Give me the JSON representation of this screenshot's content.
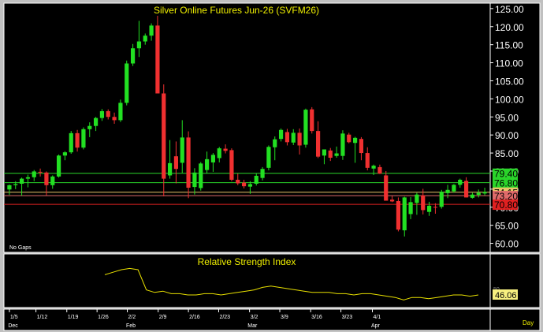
{
  "chart_data": [
    {
      "type": "candlestick",
      "title": "Silver Online Futures Jun-26 (SVFM26)",
      "note": "No Gaps",
      "ylim": [
        57.5,
        126.5
      ],
      "ticks": [
        "125.00",
        "120.00",
        "115.00",
        "110.00",
        "105.00",
        "100.00",
        "95.00",
        "90.00",
        "85.00",
        "80.00",
        "75.00",
        "70.00",
        "65.00",
        "60.00"
      ],
      "tick_values": [
        125,
        120,
        115,
        110,
        105,
        100,
        95,
        90,
        85,
        80,
        75,
        70,
        65,
        60
      ],
      "bars": [
        [
          1,
          74.9,
          76.3,
          73.4,
          76.1
        ],
        [
          2,
          76.1,
          77.2,
          75.0,
          76.4
        ],
        [
          3,
          76.5,
          78.2,
          73.2,
          77.9
        ],
        [
          4,
          77.9,
          79.0,
          75.5,
          78.3
        ],
        [
          5,
          78.3,
          80.3,
          77.2,
          79.9
        ],
        [
          6,
          79.8,
          80.7,
          78.5,
          79.6
        ],
        [
          7,
          79.6,
          79.9,
          73.3,
          76.1
        ],
        [
          8,
          76.1,
          78.8,
          75.1,
          78.5
        ],
        [
          9,
          78.5,
          84.6,
          78.2,
          84.3
        ],
        [
          10,
          84.3,
          85.5,
          83.0,
          85.2
        ],
        [
          11,
          85.2,
          91.1,
          84.8,
          90.5
        ],
        [
          12,
          90.5,
          91.4,
          85.4,
          86.5
        ],
        [
          13,
          86.5,
          92.1,
          86.0,
          91.6
        ],
        [
          14,
          91.6,
          93.5,
          89.4,
          92.5
        ],
        [
          15,
          92.5,
          95.0,
          91.1,
          94.7
        ],
        [
          16,
          94.7,
          97.2,
          93.9,
          96.6
        ],
        [
          17,
          96.6,
          97.1,
          94.3,
          95.0
        ],
        [
          18,
          95.0,
          96.2,
          93.1,
          94.1
        ],
        [
          19,
          94.1,
          99.8,
          93.6,
          98.9
        ],
        [
          20,
          98.9,
          110.6,
          98.2,
          109.8
        ],
        [
          21,
          109.8,
          115.2,
          109.1,
          114.0
        ],
        [
          22,
          114.0,
          121.6,
          111.6,
          115.9
        ],
        [
          23,
          115.9,
          118.1,
          115.0,
          117.5
        ],
        [
          24,
          117.5,
          120.9,
          116.1,
          120.3
        ],
        [
          25,
          120.3,
          123.0,
          114.0,
          101.5
        ],
        [
          26,
          101.5,
          104.0,
          73.0,
          77.9
        ],
        [
          27,
          78.8,
          88.6,
          77.9,
          82.2
        ],
        [
          28,
          84.1,
          88.2,
          76.6,
          80.6
        ],
        [
          29,
          82.3,
          94.1,
          79.5,
          89.3
        ],
        [
          30,
          89.3,
          91.0,
          72.5,
          75.4
        ],
        [
          31,
          75.6,
          80.8,
          73.5,
          79.6
        ],
        [
          32,
          75.3,
          82.5,
          74.6,
          82.1
        ],
        [
          33,
          80.3,
          85.4,
          79.3,
          83.3
        ],
        [
          34,
          82.4,
          85.0,
          79.8,
          84.5
        ],
        [
          35,
          83.6,
          86.7,
          82.4,
          86.3
        ],
        [
          36,
          86.2,
          87.4,
          84.9,
          85.6
        ],
        [
          37,
          85.8,
          86.3,
          77.2,
          77.6
        ],
        [
          38,
          77.6,
          79.3,
          76.1,
          76.6
        ],
        [
          39,
          76.8,
          77.6,
          75.2,
          75.8
        ],
        [
          40,
          75.7,
          77.2,
          73.7,
          76.4
        ],
        [
          41,
          76.5,
          79.3,
          76.0,
          78.7
        ],
        [
          42,
          78.1,
          81.1,
          77.4,
          80.6
        ],
        [
          43,
          80.9,
          87.1,
          80.2,
          86.7
        ],
        [
          44,
          86.6,
          89.6,
          83.0,
          88.8
        ],
        [
          45,
          88.9,
          91.8,
          88.2,
          91.4
        ],
        [
          46,
          90.8,
          91.7,
          87.1,
          88.0
        ],
        [
          47,
          87.9,
          91.6,
          87.2,
          90.6
        ],
        [
          48,
          90.6,
          91.8,
          84.6,
          87.1
        ],
        [
          49,
          87.3,
          97.3,
          86.5,
          97.0
        ],
        [
          50,
          97.1,
          97.7,
          90.4,
          91.1
        ],
        [
          51,
          91.1,
          93.8,
          83.6,
          84.0
        ],
        [
          52,
          84.3,
          86.0,
          81.9,
          86.0
        ],
        [
          53,
          85.7,
          86.4,
          82.8,
          83.7
        ],
        [
          54,
          84.2,
          86.8,
          83.7,
          84.9
        ],
        [
          55,
          84.2,
          91.3,
          83.1,
          90.4
        ],
        [
          56,
          90.1,
          90.6,
          87.7,
          88.0
        ],
        [
          57,
          87.8,
          89.5,
          82.3,
          89.2
        ],
        [
          58,
          88.9,
          89.4,
          83.0,
          85.0
        ],
        [
          59,
          85.0,
          86.6,
          80.2,
          80.9
        ],
        [
          60,
          80.7,
          81.8,
          78.9,
          81.5
        ],
        [
          61,
          81.1,
          81.8,
          79.2,
          79.3
        ],
        [
          62,
          78.8,
          80.0,
          71.8,
          71.8
        ],
        [
          63,
          72.1,
          73.1,
          71.4,
          71.6
        ],
        [
          64,
          71.7,
          72.7,
          63.3,
          63.8
        ],
        [
          65,
          63.6,
          72.9,
          61.9,
          72.7
        ],
        [
          66,
          68.1,
          72.8,
          66.7,
          71.4
        ],
        [
          67,
          71.2,
          74.0,
          67.9,
          73.5
        ],
        [
          68,
          73.3,
          75.1,
          68.0,
          69.2
        ],
        [
          69,
          68.7,
          71.5,
          67.6,
          70.4
        ],
        [
          70,
          70.1,
          71.1,
          68.2,
          70.0
        ],
        [
          71,
          70.1,
          74.8,
          69.6,
          74.3
        ],
        [
          72,
          73.9,
          76.2,
          72.5,
          74.8
        ],
        [
          73,
          74.4,
          76.4,
          74.0,
          76.2
        ],
        [
          74,
          76.2,
          77.9,
          75.4,
          77.6
        ],
        [
          75,
          77.3,
          78.3,
          72.7,
          72.7
        ],
        [
          76,
          72.6,
          74.0,
          72.4,
          73.5
        ],
        [
          77,
          73.4,
          74.9,
          72.7,
          74.0
        ],
        [
          78,
          73.8,
          75.4,
          73.3,
          74.2
        ]
      ],
      "hlines": [
        {
          "value": 79.4,
          "label": "79.40",
          "color": "#2ad52a"
        },
        {
          "value": 76.8,
          "label": "76.80",
          "color": "#2ad52a"
        },
        {
          "value": 74.15,
          "label": "74.15",
          "color": "#e8c468"
        },
        {
          "value": 73.2,
          "label": "73.20",
          "color": "#e06a6a"
        },
        {
          "value": 70.8,
          "label": "70.80",
          "color": "#e02020"
        }
      ],
      "xlabels": [
        "1/5",
        "1/12",
        "1/19",
        "1/26",
        "2/2",
        "2/9",
        "2/16",
        "2/23",
        "3/2",
        "3/9",
        "3/16",
        "3/23",
        "4/1"
      ],
      "xlabel_bars": [
        0.5,
        4.8,
        9.8,
        14.7,
        19.6,
        24.6,
        29.5,
        34.4,
        39.4,
        44.3,
        49.3,
        54.2,
        59.3
      ],
      "months": [
        {
          "label": "Dec",
          "bar": 0.3
        },
        {
          "label": "Feb",
          "bar": 19.4
        },
        {
          "label": "Mar",
          "bar": 39.1
        },
        {
          "label": "Apr",
          "bar": 59.1
        }
      ]
    },
    {
      "type": "line",
      "title": "Relative Strength Index",
      "series": [
        {
          "values": [
            62,
            64,
            66,
            67,
            66,
            50,
            48,
            49,
            47,
            47,
            46,
            46,
            47,
            47,
            46,
            47,
            48,
            49,
            50,
            52,
            53,
            52,
            51,
            50,
            49,
            48,
            48,
            48,
            47,
            47,
            46,
            47,
            47,
            46,
            45,
            44,
            42,
            44,
            44,
            43,
            44,
            45,
            46,
            46,
            45,
            46
          ]
        }
      ],
      "last_value": "46.06",
      "ticks": [
        "50",
        "50"
      ]
    }
  ],
  "footer": {
    "period_label": "Day"
  }
}
